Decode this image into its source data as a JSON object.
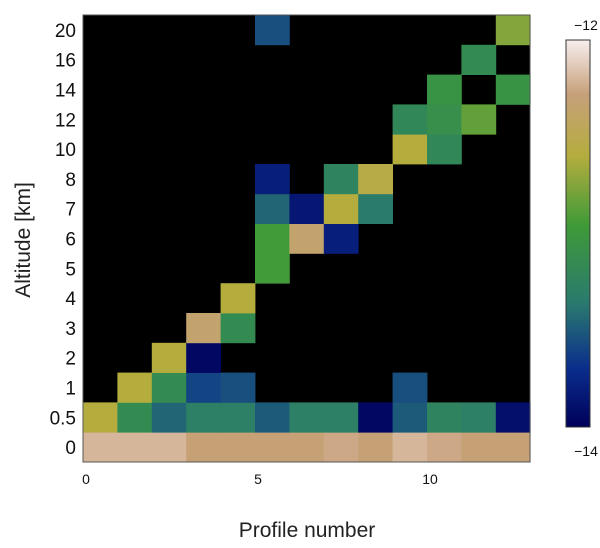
{
  "chart_data": {
    "type": "heatmap",
    "title": "",
    "xlabel": "Profile number",
    "ylabel": "Altitude [km]",
    "x_ticks": [
      "0",
      "5",
      "10"
    ],
    "y_levels": [
      "0",
      "0.5",
      "1",
      "2",
      "3",
      "4",
      "5",
      "6",
      "7",
      "8",
      "10",
      "12",
      "14",
      "16",
      "20"
    ],
    "colorbar": {
      "min": -14,
      "max": -12,
      "min_label": "−14",
      "max_label": "−12"
    },
    "background_color": "#000000",
    "cells": [
      {
        "x": 0,
        "y": "0",
        "v": -12.2
      },
      {
        "x": 1,
        "y": "0",
        "v": -12.2
      },
      {
        "x": 2,
        "y": "0",
        "v": -12.2
      },
      {
        "x": 3,
        "y": "0",
        "v": -12.3
      },
      {
        "x": 4,
        "y": "0",
        "v": -12.3
      },
      {
        "x": 5,
        "y": "0",
        "v": -12.3
      },
      {
        "x": 6,
        "y": "0",
        "v": -12.3
      },
      {
        "x": 7,
        "y": "0",
        "v": -12.25
      },
      {
        "x": 8,
        "y": "0",
        "v": -12.3
      },
      {
        "x": 9,
        "y": "0",
        "v": -12.2
      },
      {
        "x": 10,
        "y": "0",
        "v": -12.25
      },
      {
        "x": 11,
        "y": "0",
        "v": -12.3
      },
      {
        "x": 12,
        "y": "0",
        "v": -12.3
      },
      {
        "x": 0,
        "y": "0.5",
        "v": -12.6
      },
      {
        "x": 1,
        "y": "0.5",
        "v": -13.15
      },
      {
        "x": 2,
        "y": "0.5",
        "v": -13.45
      },
      {
        "x": 3,
        "y": "0.5",
        "v": -13.3
      },
      {
        "x": 4,
        "y": "0.5",
        "v": -13.3
      },
      {
        "x": 5,
        "y": "0.5",
        "v": -13.5
      },
      {
        "x": 6,
        "y": "0.5",
        "v": -13.3
      },
      {
        "x": 7,
        "y": "0.5",
        "v": -13.3
      },
      {
        "x": 8,
        "y": "0.5",
        "v": -13.95
      },
      {
        "x": 9,
        "y": "0.5",
        "v": -13.5
      },
      {
        "x": 10,
        "y": "0.5",
        "v": -13.25
      },
      {
        "x": 11,
        "y": "0.5",
        "v": -13.3
      },
      {
        "x": 12,
        "y": "0.5",
        "v": -13.9
      },
      {
        "x": 1,
        "y": "1",
        "v": -12.6
      },
      {
        "x": 2,
        "y": "1",
        "v": -13.15
      },
      {
        "x": 3,
        "y": "1",
        "v": -13.6
      },
      {
        "x": 4,
        "y": "1",
        "v": -13.55
      },
      {
        "x": 9,
        "y": "1",
        "v": -13.55
      },
      {
        "x": 2,
        "y": "2",
        "v": -12.6
      },
      {
        "x": 3,
        "y": "2",
        "v": -13.95
      },
      {
        "x": 3,
        "y": "3",
        "v": -12.35
      },
      {
        "x": 4,
        "y": "3",
        "v": -13.15
      },
      {
        "x": 4,
        "y": "4",
        "v": -12.6
      },
      {
        "x": 5,
        "y": "5",
        "v": -12.95
      },
      {
        "x": 5,
        "y": "6",
        "v": -12.95
      },
      {
        "x": 6,
        "y": "6",
        "v": -12.35
      },
      {
        "x": 7,
        "y": "6",
        "v": -13.8
      },
      {
        "x": 5,
        "y": "7",
        "v": -13.45
      },
      {
        "x": 6,
        "y": "7",
        "v": -13.85
      },
      {
        "x": 7,
        "y": "7",
        "v": -12.6
      },
      {
        "x": 8,
        "y": "7",
        "v": -13.35
      },
      {
        "x": 5,
        "y": "8",
        "v": -13.8
      },
      {
        "x": 7,
        "y": "8",
        "v": -13.25
      },
      {
        "x": 8,
        "y": "8",
        "v": -12.55
      },
      {
        "x": 9,
        "y": "10",
        "v": -12.6
      },
      {
        "x": 10,
        "y": "10",
        "v": -13.2
      },
      {
        "x": 9,
        "y": "12",
        "v": -13.2
      },
      {
        "x": 10,
        "y": "12",
        "v": -13.1
      },
      {
        "x": 11,
        "y": "12",
        "v": -12.85
      },
      {
        "x": 10,
        "y": "14",
        "v": -13.05
      },
      {
        "x": 12,
        "y": "14",
        "v": -13.05
      },
      {
        "x": 11,
        "y": "16",
        "v": -13.15
      },
      {
        "x": 5,
        "y": "20",
        "v": -13.55
      },
      {
        "x": 12,
        "y": "20",
        "v": -12.75
      }
    ]
  }
}
